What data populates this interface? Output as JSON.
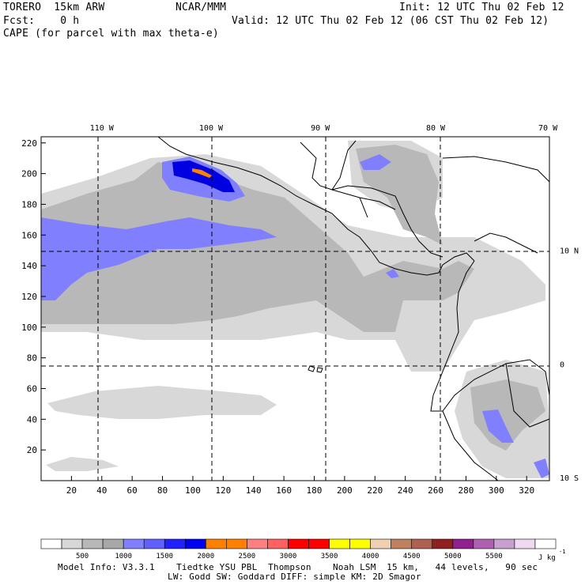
{
  "header": {
    "model_name": "TORERO  15km ARW",
    "org": "NCAR/MMM",
    "init": "Init: 12 UTC Thu 02 Feb 12",
    "fcst": "Fcst:    0 h",
    "valid": "Valid: 12 UTC Thu 02 Feb 12 (06 CST Thu 02 Feb 12)",
    "field": "CAPE (for parcel with max theta-e)"
  },
  "footer": {
    "line1": "Model Info: V3.3.1    Tiedtke YSU PBL  Thompson    Noah LSM  15 km,   44 levels,   90 sec",
    "line2": "LW: Godd SW: Goddard DIFF: simple KM: 2D Smagor"
  },
  "chart_data": {
    "type": "heatmap",
    "title": "CAPE (for parcel with max theta-e)",
    "x_grid": {
      "ticks": [
        20,
        40,
        60,
        80,
        100,
        120,
        140,
        160,
        180,
        200,
        220,
        240,
        260,
        280,
        300,
        320
      ],
      "range": [
        0,
        335
      ]
    },
    "y_grid": {
      "ticks": [
        20,
        40,
        60,
        80,
        100,
        120,
        140,
        160,
        180,
        200,
        220
      ],
      "range": [
        0,
        224
      ]
    },
    "longitude_labels": [
      "110 W",
      "100 W",
      "90 W",
      "80 W",
      "70 W"
    ],
    "longitude_x_grid": [
      40,
      112,
      184,
      260,
      334
    ],
    "latitude_labels": [
      "10 N",
      "0",
      "10 S"
    ],
    "latitude_y_grid": [
      150,
      76,
      2
    ],
    "colorbar": {
      "units": "J kg",
      "units_exponent": "-1",
      "tick_labels": [
        "500",
        "1000",
        "1500",
        "2000",
        "2500",
        "3000",
        "3500",
        "4000",
        "4500",
        "5000",
        "5500"
      ],
      "colors": [
        "#ffffff",
        "#d8d8d8",
        "#b8b8b8",
        "#a8a8a8",
        "#8080ff",
        "#6060ff",
        "#2020ff",
        "#0000f0",
        "#ff8000",
        "#ff8000",
        "#ff8080",
        "#ff6060",
        "#ff0000",
        "#ff0000",
        "#ffff00",
        "#ffff00",
        "#f0d0b0",
        "#c08060",
        "#b06050",
        "#902020",
        "#902090",
        "#b060b0",
        "#c8a0d0",
        "#f0d8f0",
        "#ffffff"
      ]
    },
    "shading": {
      "light": "#d8d8d8",
      "medium": "#b8b8b8",
      "blue": "#8080ff",
      "deep_blue": "#0000e0",
      "orange": "#ff8000"
    },
    "grid": true
  }
}
